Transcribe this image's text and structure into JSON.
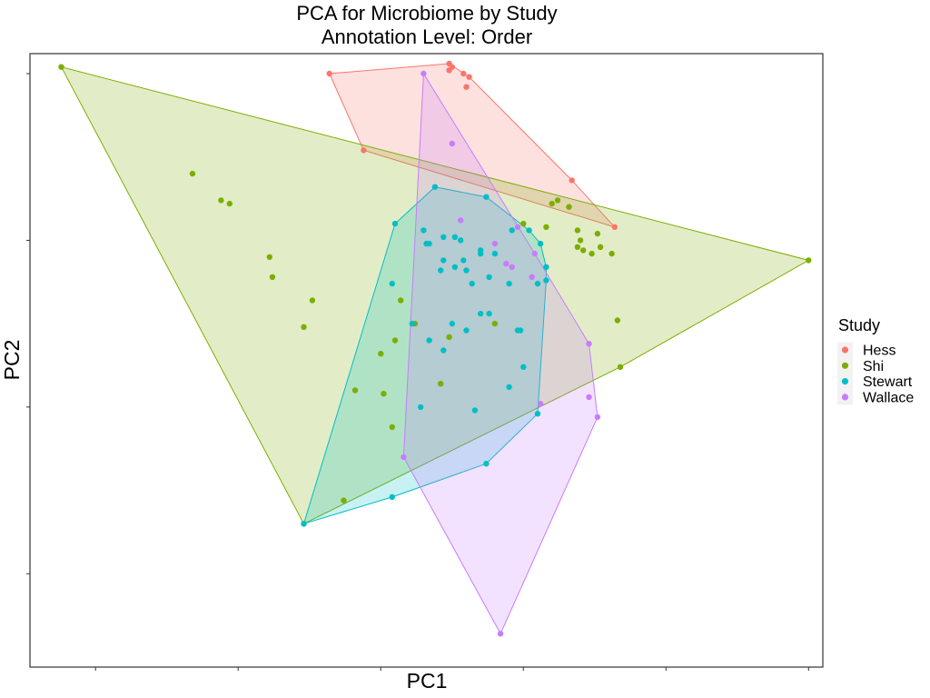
{
  "chart_data": {
    "type": "scatter",
    "title": "PCA for Microbiome by Study",
    "subtitle": "Annotation Level: Order",
    "xlabel": "PC1",
    "ylabel": "PC2",
    "xlim": [
      -14.3,
      13.5
    ],
    "ylim": [
      -8.8,
      9.6
    ],
    "x_ticks": [
      -12,
      -7,
      -2,
      3,
      8,
      13
    ],
    "y_ticks": [
      -6,
      -1,
      4,
      9
    ],
    "grid": false,
    "hulls": true,
    "legend": {
      "title": "Study",
      "position": "right"
    },
    "series": [
      {
        "name": "Hess",
        "color": "#F8766D",
        "points": [
          [
            -3.8,
            9.0
          ],
          [
            -2.6,
            6.7
          ],
          [
            0.4,
            9.3
          ],
          [
            0.4,
            9.1
          ],
          [
            0.5,
            9.2
          ],
          [
            0.9,
            9.0
          ],
          [
            1.1,
            8.9
          ],
          [
            1.0,
            8.6
          ],
          [
            4.7,
            5.8
          ],
          [
            6.2,
            4.4
          ]
        ]
      },
      {
        "name": "Shi",
        "color": "#7CAE00",
        "points": [
          [
            -13.2,
            9.2
          ],
          [
            -8.6,
            6.0
          ],
          [
            -7.6,
            5.2
          ],
          [
            -7.3,
            5.1
          ],
          [
            -5.9,
            3.5
          ],
          [
            -5.8,
            2.9
          ],
          [
            -4.4,
            2.2
          ],
          [
            -4.7,
            1.4
          ],
          [
            -2.9,
            -0.5
          ],
          [
            -3.3,
            -3.8
          ],
          [
            -1.3,
            2.2
          ],
          [
            -1.5,
            1.0
          ],
          [
            -0.8,
            1.5
          ],
          [
            0.4,
            1.1
          ],
          [
            -2.0,
            0.6
          ],
          [
            -1.9,
            -0.6
          ],
          [
            -1.6,
            -1.6
          ],
          [
            0.1,
            -0.3
          ],
          [
            2.0,
            1.5
          ],
          [
            3.0,
            4.5
          ],
          [
            3.8,
            4.4
          ],
          [
            4.0,
            5.1
          ],
          [
            4.2,
            5.2
          ],
          [
            4.6,
            5.0
          ],
          [
            4.9,
            4.3
          ],
          [
            5.0,
            4.0
          ],
          [
            4.9,
            3.8
          ],
          [
            5.1,
            3.7
          ],
          [
            5.4,
            3.6
          ],
          [
            5.6,
            4.2
          ],
          [
            5.7,
            3.8
          ],
          [
            6.1,
            3.6
          ],
          [
            6.3,
            1.6
          ],
          [
            6.4,
            0.2
          ],
          [
            13.0,
            3.4
          ],
          [
            -4.7,
            -4.5
          ]
        ]
      },
      {
        "name": "Stewart",
        "color": "#00BFC4",
        "points": [
          [
            -4.7,
            -4.5
          ],
          [
            -1.5,
            4.5
          ],
          [
            -0.1,
            5.6
          ],
          [
            -1.6,
            2.7
          ],
          [
            -0.5,
            4.3
          ],
          [
            0.2,
            4.1
          ],
          [
            -0.3,
            3.9
          ],
          [
            -0.4,
            3.9
          ],
          [
            0.1,
            3.1
          ],
          [
            0.2,
            3.4
          ],
          [
            0.6,
            4.1
          ],
          [
            0.8,
            4.0
          ],
          [
            0.9,
            3.4
          ],
          [
            1.0,
            3.1
          ],
          [
            1.5,
            3.7
          ],
          [
            1.5,
            3.6
          ],
          [
            1.7,
            5.3
          ],
          [
            1.8,
            2.9
          ],
          [
            1.5,
            1.8
          ],
          [
            1.2,
            2.7
          ],
          [
            2.0,
            3.6
          ],
          [
            3.2,
            4.3
          ],
          [
            3.6,
            3.9
          ],
          [
            3.5,
            2.7
          ],
          [
            3.8,
            3.2
          ],
          [
            3.8,
            2.8
          ],
          [
            2.9,
            1.3
          ],
          [
            2.5,
            2.7
          ],
          [
            1.0,
            1.3
          ],
          [
            0.5,
            1.5
          ],
          [
            -0.9,
            1.5
          ],
          [
            -0.3,
            1.0
          ],
          [
            0.2,
            0.7
          ],
          [
            -0.6,
            -1.0
          ],
          [
            1.3,
            -1.1
          ],
          [
            2.5,
            -0.4
          ],
          [
            3.0,
            0.2
          ],
          [
            2.8,
            1.3
          ],
          [
            1.8,
            1.8
          ],
          [
            2.6,
            4.3
          ],
          [
            3.5,
            -1.2
          ],
          [
            1.7,
            -2.7
          ],
          [
            -1.6,
            -3.7
          ],
          [
            0.6,
            3.2
          ]
        ]
      },
      {
        "name": "Wallace",
        "color": "#C77CFF",
        "points": [
          [
            -0.5,
            9.0
          ],
          [
            2.8,
            4.4
          ],
          [
            0.5,
            6.9
          ],
          [
            2.0,
            3.9
          ],
          [
            2.4,
            3.3
          ],
          [
            2.6,
            3.2
          ],
          [
            3.4,
            3.6
          ],
          [
            3.3,
            2.9
          ],
          [
            3.6,
            -0.9
          ],
          [
            5.6,
            -1.3
          ],
          [
            5.3,
            0.9
          ],
          [
            5.3,
            -0.7
          ],
          [
            -1.2,
            -2.5
          ],
          [
            2.2,
            -7.8
          ],
          [
            0.8,
            4.6
          ]
        ]
      }
    ]
  }
}
